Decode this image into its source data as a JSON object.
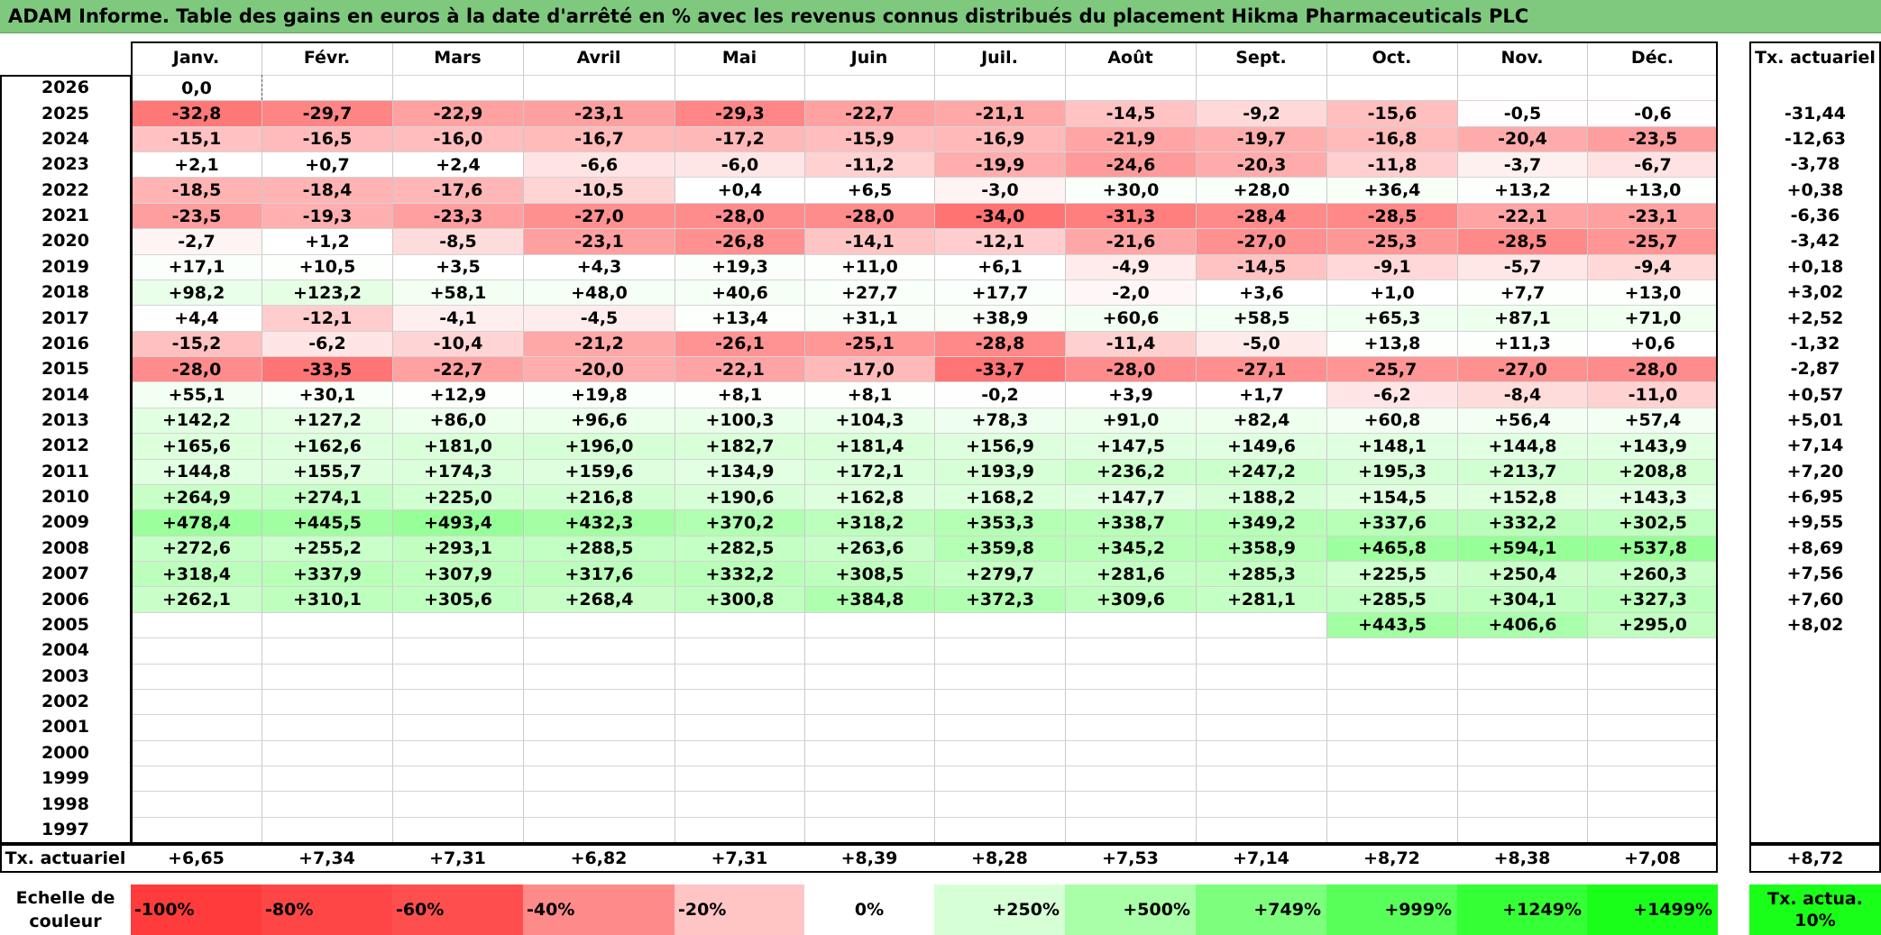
{
  "title": "ADAM Informe. Table des gains en euros à la date d'arrêté en % avec les revenus connus distribués du placement Hikma Pharmaceuticals PLC",
  "chart_data": {
    "type": "table",
    "columns": [
      "Janv.",
      "Févr.",
      "Mars",
      "Avril",
      "Mai",
      "Juin",
      "Juil.",
      "Août",
      "Sept.",
      "Oct.",
      "Nov.",
      "Déc."
    ],
    "annual_header": "Tx. actuariel",
    "rows": [
      {
        "year": "2026",
        "values": [
          "0,0",
          "",
          "",
          "",
          "",
          "",
          "",
          "",
          "",
          "",
          "",
          ""
        ],
        "annual": ""
      },
      {
        "year": "2025",
        "values": [
          "-32,8",
          "-29,7",
          "-22,9",
          "-23,1",
          "-29,3",
          "-22,7",
          "-21,1",
          "-14,5",
          "-9,2",
          "-15,6",
          "-0,5",
          "-0,6"
        ],
        "annual": "-31,44"
      },
      {
        "year": "2024",
        "values": [
          "-15,1",
          "-16,5",
          "-16,0",
          "-16,7",
          "-17,2",
          "-15,9",
          "-16,9",
          "-21,9",
          "-19,7",
          "-16,8",
          "-20,4",
          "-23,5"
        ],
        "annual": "-12,63"
      },
      {
        "year": "2023",
        "values": [
          "+2,1",
          "+0,7",
          "+2,4",
          "-6,6",
          "-6,0",
          "-11,2",
          "-19,9",
          "-24,6",
          "-20,3",
          "-11,8",
          "-3,7",
          "-6,7"
        ],
        "annual": "-3,78"
      },
      {
        "year": "2022",
        "values": [
          "-18,5",
          "-18,4",
          "-17,6",
          "-10,5",
          "+0,4",
          "+6,5",
          "-3,0",
          "+30,0",
          "+28,0",
          "+36,4",
          "+13,2",
          "+13,0"
        ],
        "annual": "+0,38"
      },
      {
        "year": "2021",
        "values": [
          "-23,5",
          "-19,3",
          "-23,3",
          "-27,0",
          "-28,0",
          "-28,0",
          "-34,0",
          "-31,3",
          "-28,4",
          "-28,5",
          "-22,1",
          "-23,1"
        ],
        "annual": "-6,36"
      },
      {
        "year": "2020",
        "values": [
          "-2,7",
          "+1,2",
          "-8,5",
          "-23,1",
          "-26,8",
          "-14,1",
          "-12,1",
          "-21,6",
          "-27,0",
          "-25,3",
          "-28,5",
          "-25,7"
        ],
        "annual": "-3,42"
      },
      {
        "year": "2019",
        "values": [
          "+17,1",
          "+10,5",
          "+3,5",
          "+4,3",
          "+19,3",
          "+11,0",
          "+6,1",
          "-4,9",
          "-14,5",
          "-9,1",
          "-5,7",
          "-9,4"
        ],
        "annual": "+0,18"
      },
      {
        "year": "2018",
        "values": [
          "+98,2",
          "+123,2",
          "+58,1",
          "+48,0",
          "+40,6",
          "+27,7",
          "+17,7",
          "-2,0",
          "+3,6",
          "+1,0",
          "+7,7",
          "+13,0"
        ],
        "annual": "+3,02"
      },
      {
        "year": "2017",
        "values": [
          "+4,4",
          "-12,1",
          "-4,1",
          "-4,5",
          "+13,4",
          "+31,1",
          "+38,9",
          "+60,6",
          "+58,5",
          "+65,3",
          "+87,1",
          "+71,0"
        ],
        "annual": "+2,52"
      },
      {
        "year": "2016",
        "values": [
          "-15,2",
          "-6,2",
          "-10,4",
          "-21,2",
          "-26,1",
          "-25,1",
          "-28,8",
          "-11,4",
          "-5,0",
          "+13,8",
          "+11,3",
          "+0,6"
        ],
        "annual": "-1,32"
      },
      {
        "year": "2015",
        "values": [
          "-28,0",
          "-33,5",
          "-22,7",
          "-20,0",
          "-22,1",
          "-17,0",
          "-33,7",
          "-28,0",
          "-27,1",
          "-25,7",
          "-27,0",
          "-28,0"
        ],
        "annual": "-2,87"
      },
      {
        "year": "2014",
        "values": [
          "+55,1",
          "+30,1",
          "+12,9",
          "+19,8",
          "+8,1",
          "+8,1",
          "-0,2",
          "+3,9",
          "+1,7",
          "-6,2",
          "-8,4",
          "-11,0"
        ],
        "annual": "+0,57"
      },
      {
        "year": "2013",
        "values": [
          "+142,2",
          "+127,2",
          "+86,0",
          "+96,6",
          "+100,3",
          "+104,3",
          "+78,3",
          "+91,0",
          "+82,4",
          "+60,8",
          "+56,4",
          "+57,4"
        ],
        "annual": "+5,01"
      },
      {
        "year": "2012",
        "values": [
          "+165,6",
          "+162,6",
          "+181,0",
          "+196,0",
          "+182,7",
          "+181,4",
          "+156,9",
          "+147,5",
          "+149,6",
          "+148,1",
          "+144,8",
          "+143,9"
        ],
        "annual": "+7,14"
      },
      {
        "year": "2011",
        "values": [
          "+144,8",
          "+155,7",
          "+174,3",
          "+159,6",
          "+134,9",
          "+172,1",
          "+193,9",
          "+236,2",
          "+247,2",
          "+195,3",
          "+213,7",
          "+208,8"
        ],
        "annual": "+7,20"
      },
      {
        "year": "2010",
        "values": [
          "+264,9",
          "+274,1",
          "+225,0",
          "+216,8",
          "+190,6",
          "+162,8",
          "+168,2",
          "+147,7",
          "+188,2",
          "+154,5",
          "+152,8",
          "+143,3"
        ],
        "annual": "+6,95"
      },
      {
        "year": "2009",
        "values": [
          "+478,4",
          "+445,5",
          "+493,4",
          "+432,3",
          "+370,2",
          "+318,2",
          "+353,3",
          "+338,7",
          "+349,2",
          "+337,6",
          "+332,2",
          "+302,5"
        ],
        "annual": "+9,55"
      },
      {
        "year": "2008",
        "values": [
          "+272,6",
          "+255,2",
          "+293,1",
          "+288,5",
          "+282,5",
          "+263,6",
          "+359,8",
          "+345,2",
          "+358,9",
          "+465,8",
          "+594,1",
          "+537,8"
        ],
        "annual": "+8,69"
      },
      {
        "year": "2007",
        "values": [
          "+318,4",
          "+337,9",
          "+307,9",
          "+317,6",
          "+332,2",
          "+308,5",
          "+279,7",
          "+281,6",
          "+285,3",
          "+225,5",
          "+250,4",
          "+260,3"
        ],
        "annual": "+7,56"
      },
      {
        "year": "2006",
        "values": [
          "+262,1",
          "+310,1",
          "+305,6",
          "+268,4",
          "+300,8",
          "+384,8",
          "+372,3",
          "+309,6",
          "+281,1",
          "+285,5",
          "+304,1",
          "+327,3"
        ],
        "annual": "+7,60"
      },
      {
        "year": "2005",
        "values": [
          "",
          "",
          "",
          "",
          "",
          "",
          "",
          "",
          "",
          "+443,5",
          "+406,6",
          "+295,0"
        ],
        "annual": "+8,02"
      },
      {
        "year": "2004",
        "values": [
          "",
          "",
          "",
          "",
          "",
          "",
          "",
          "",
          "",
          "",
          "",
          ""
        ],
        "annual": ""
      },
      {
        "year": "2003",
        "values": [
          "",
          "",
          "",
          "",
          "",
          "",
          "",
          "",
          "",
          "",
          "",
          ""
        ],
        "annual": ""
      },
      {
        "year": "2002",
        "values": [
          "",
          "",
          "",
          "",
          "",
          "",
          "",
          "",
          "",
          "",
          "",
          ""
        ],
        "annual": ""
      },
      {
        "year": "2001",
        "values": [
          "",
          "",
          "",
          "",
          "",
          "",
          "",
          "",
          "",
          "",
          "",
          ""
        ],
        "annual": ""
      },
      {
        "year": "2000",
        "values": [
          "",
          "",
          "",
          "",
          "",
          "",
          "",
          "",
          "",
          "",
          "",
          ""
        ],
        "annual": ""
      },
      {
        "year": "1999",
        "values": [
          "",
          "",
          "",
          "",
          "",
          "",
          "",
          "",
          "",
          "",
          "",
          ""
        ],
        "annual": ""
      },
      {
        "year": "1998",
        "values": [
          "",
          "",
          "",
          "",
          "",
          "",
          "",
          "",
          "",
          "",
          "",
          ""
        ],
        "annual": ""
      },
      {
        "year": "1997",
        "values": [
          "",
          "",
          "",
          "",
          "",
          "",
          "",
          "",
          "",
          "",
          "",
          ""
        ],
        "annual": ""
      }
    ],
    "footer": {
      "label": "Tx. actuariel",
      "values": [
        "+6,65",
        "+7,34",
        "+7,31",
        "+6,82",
        "+7,31",
        "+8,39",
        "+8,28",
        "+7,53",
        "+7,14",
        "+8,72",
        "+8,38",
        "+7,08"
      ],
      "annual": "+8,72"
    },
    "color_scale": {
      "label": "Echelle de couleur",
      "steps": [
        {
          "label": "-100%",
          "color": "#ff3b3b"
        },
        {
          "label": "-80%",
          "color": "#ff4646"
        },
        {
          "label": "-60%",
          "color": "#ff4e4e"
        },
        {
          "label": "-40%",
          "color": "#ff8a8a"
        },
        {
          "label": "-20%",
          "color": "#ffc4c4"
        },
        {
          "label": "0%",
          "color": "#ffffff"
        },
        {
          "label": "+250%",
          "color": "#d6ffd6"
        },
        {
          "label": "+500%",
          "color": "#a8ffa8"
        },
        {
          "label": "+749%",
          "color": "#7dff7d"
        },
        {
          "label": "+999%",
          "color": "#58ff58"
        },
        {
          "label": "+1249%",
          "color": "#35ff35"
        },
        {
          "label": "+1499%",
          "color": "#1aff1a"
        }
      ],
      "annual_label": "Tx. actua. 10%",
      "annual_color": "#1aff1a"
    }
  }
}
